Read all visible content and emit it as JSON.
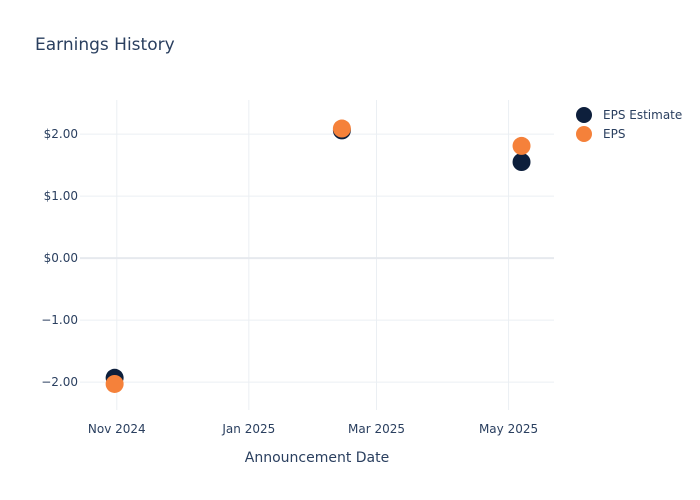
{
  "chart_data": {
    "type": "scatter",
    "title": "Earnings History",
    "xlabel": "Announcement Date",
    "ylabel": "",
    "x_ticks": [
      {
        "date": "2024-11-01",
        "label": "Nov 2024"
      },
      {
        "date": "2025-01-01",
        "label": "Jan 2025"
      },
      {
        "date": "2025-03-01",
        "label": "Mar 2025"
      },
      {
        "date": "2025-05-01",
        "label": "May 2025"
      }
    ],
    "xlim": [
      "2024-10-15",
      "2025-05-22"
    ],
    "y_ticks": [
      {
        "value": 2,
        "label": "$2.00"
      },
      {
        "value": 1,
        "label": "$1.00"
      },
      {
        "value": 0,
        "label": "$0.00"
      },
      {
        "value": -1,
        "label": "−1.00"
      },
      {
        "value": -2,
        "label": "−2.00"
      }
    ],
    "ylim": [
      -2.45,
      2.55
    ],
    "grid": true,
    "legend": "top-right",
    "series": [
      {
        "name": "EPS Estimate",
        "color": "#0d1f3c",
        "points": [
          {
            "x": "2024-10-31",
            "y": -1.93
          },
          {
            "x": "2025-02-13",
            "y": 2.06
          },
          {
            "x": "2025-05-07",
            "y": 1.55
          }
        ]
      },
      {
        "name": "EPS",
        "color": "#f5813a",
        "points": [
          {
            "x": "2024-10-31",
            "y": -2.03
          },
          {
            "x": "2025-02-13",
            "y": 2.09
          },
          {
            "x": "2025-05-07",
            "y": 1.81
          }
        ]
      }
    ]
  }
}
